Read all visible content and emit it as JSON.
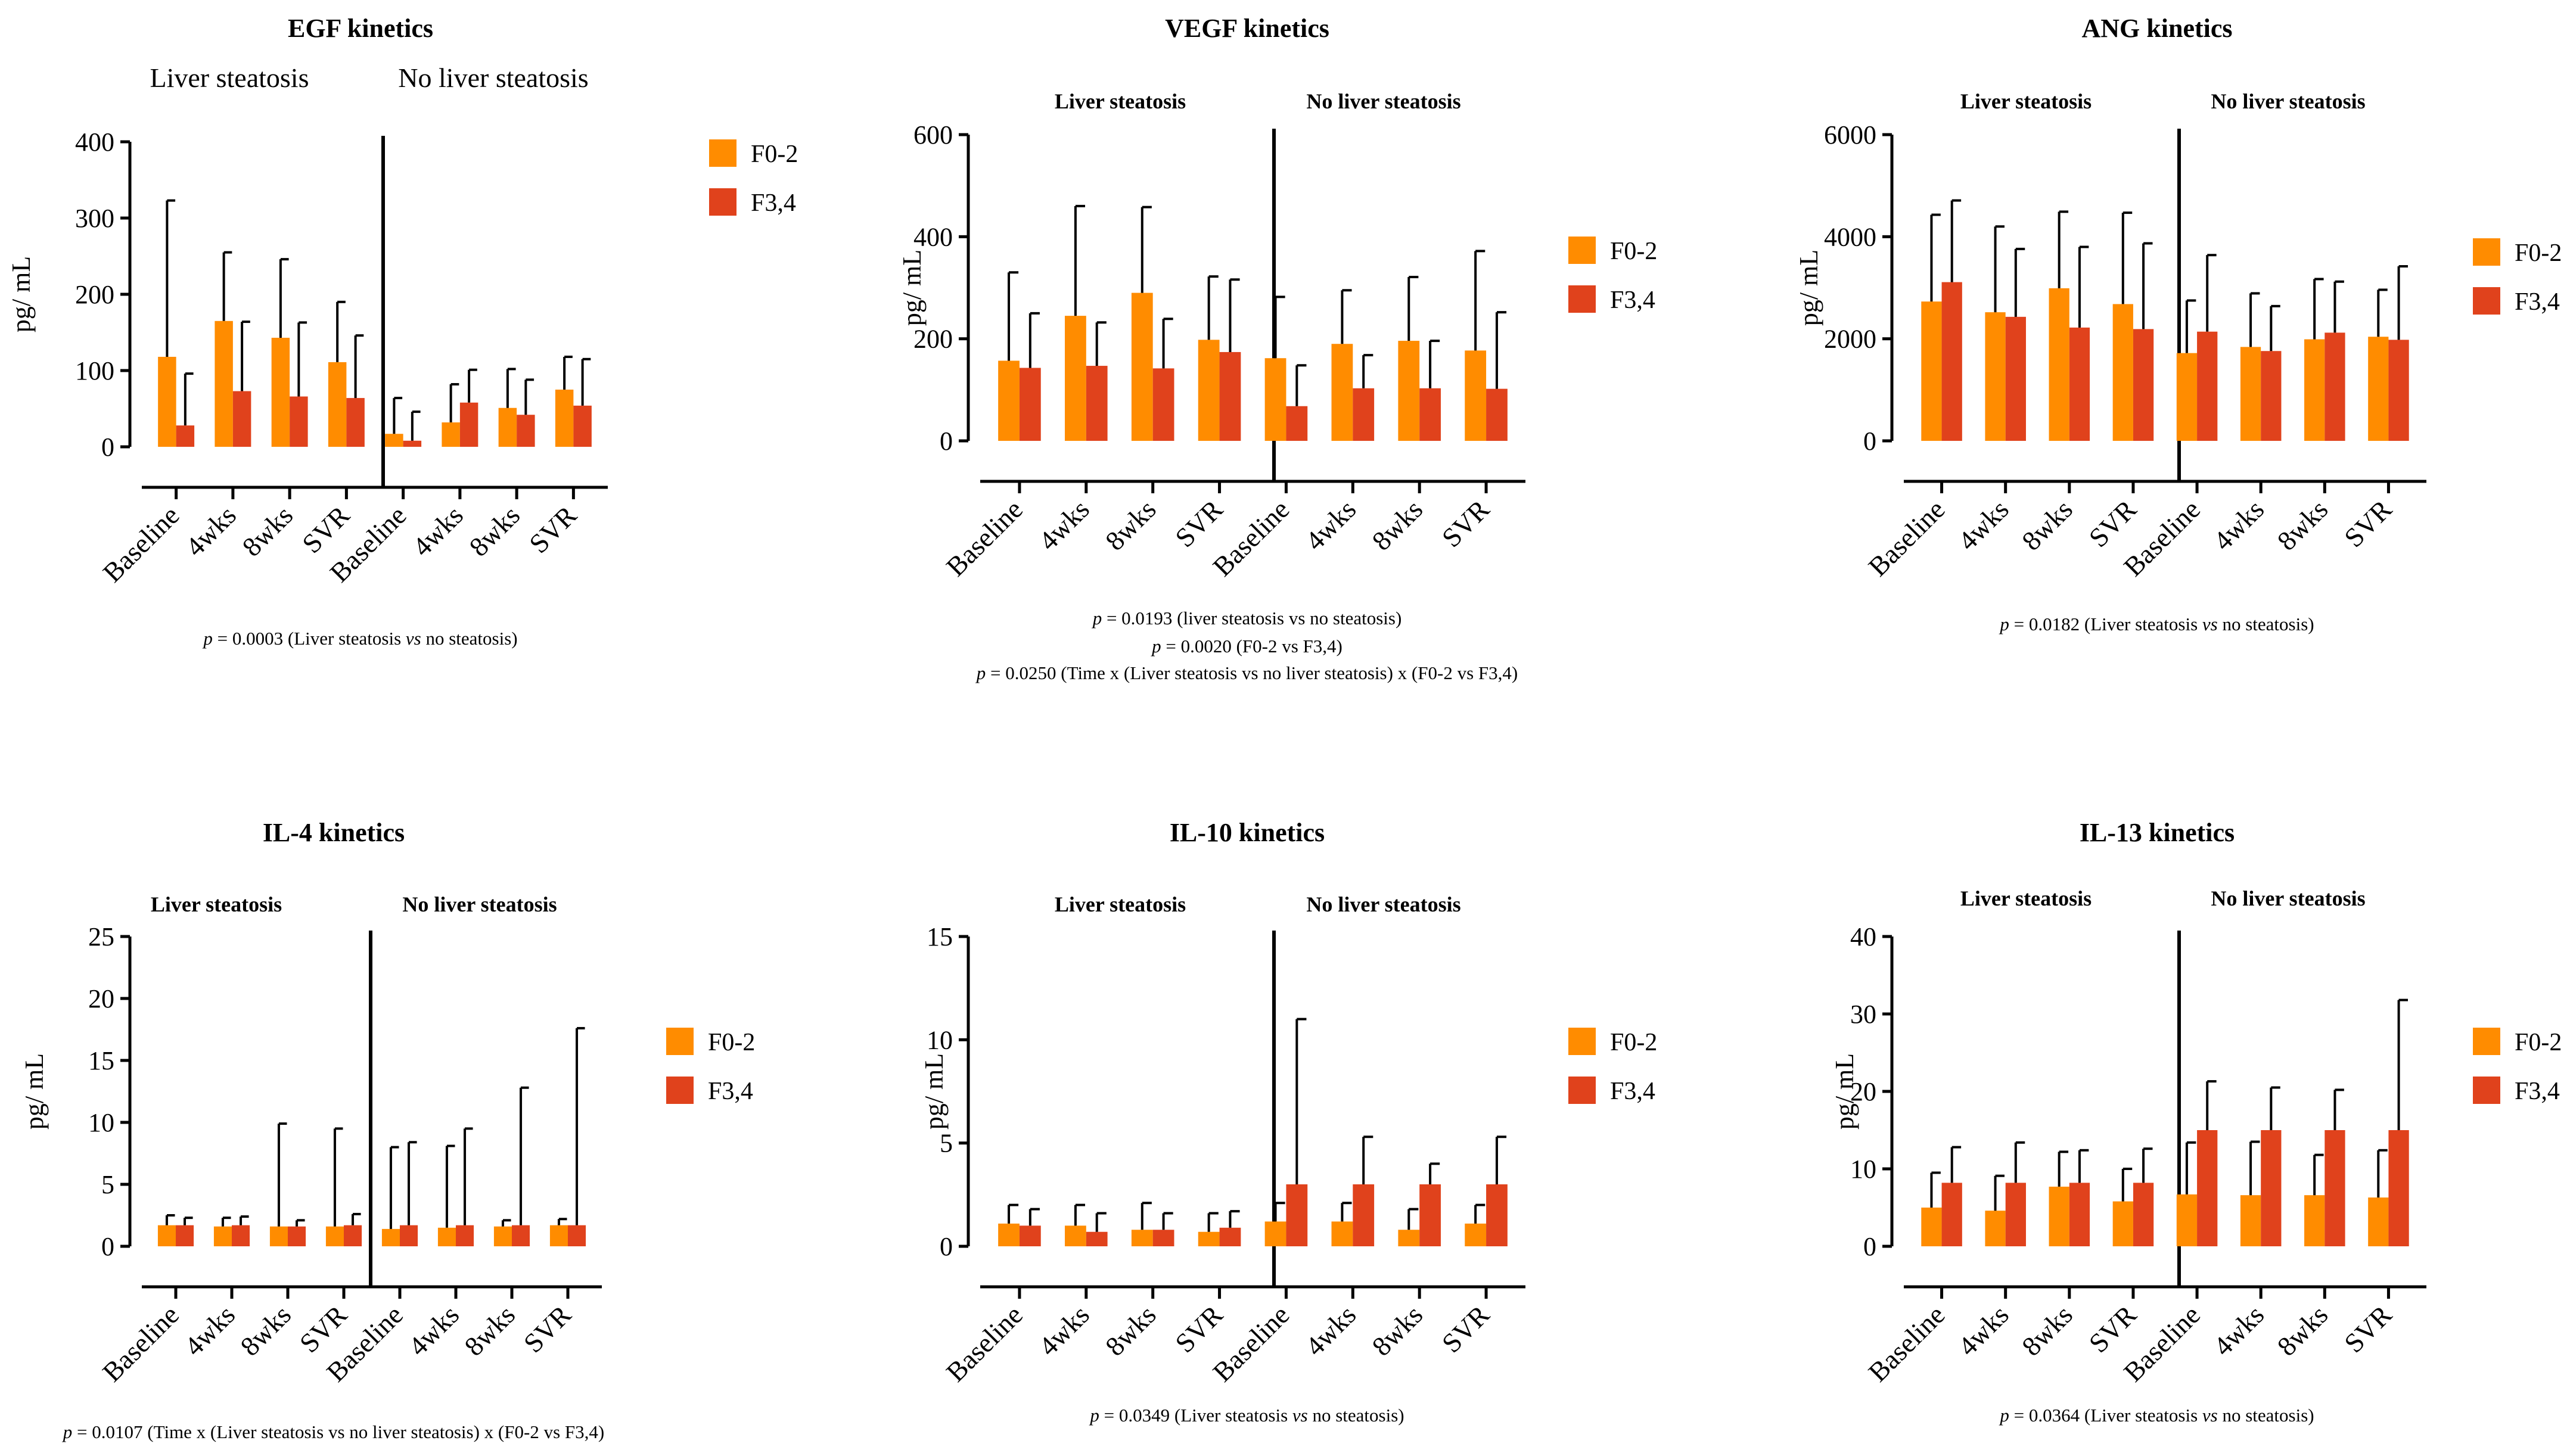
{
  "legend": [
    "F0-2",
    "F3,4"
  ],
  "colors": {
    "f02": "#ff8c00",
    "f34": "#e0421c",
    "axis": "#000000"
  },
  "chart_data": [
    {
      "type": "bar",
      "title": "EGF kinetics",
      "ylabel": "pg/ mL",
      "ylim": [
        0,
        400
      ],
      "yticks": [
        "0",
        "100",
        "200",
        "300",
        "400"
      ],
      "groups": [
        "Liver steatosis",
        "No liver steatosis"
      ],
      "categories": [
        "Baseline",
        "4wks",
        "8wks",
        "SVR",
        "Baseline",
        "4wks",
        "8wks",
        "SVR"
      ],
      "series": [
        {
          "name": "F0-2",
          "values": [
            118,
            165,
            143,
            111,
            17,
            32,
            51,
            75
          ],
          "errors": [
            205,
            90,
            103,
            79,
            47,
            50,
            51,
            43
          ]
        },
        {
          "name": "F3,4",
          "values": [
            28,
            73,
            66,
            64,
            8,
            58,
            42,
            54
          ],
          "errors": [
            68,
            91,
            97,
            82,
            38,
            43,
            46,
            61
          ]
        }
      ],
      "notes": [
        [
          "p",
          " = 0.0003 (Liver steatosis ",
          "vs",
          " no steatosis)"
        ]
      ]
    },
    {
      "type": "bar",
      "title": "VEGF kinetics",
      "ylabel": "pg/ mL",
      "ylim": [
        0,
        600
      ],
      "yticks": [
        "0",
        "200",
        "400",
        "600"
      ],
      "groups": [
        "Liver steatosis",
        "No liver steatosis"
      ],
      "categories": [
        "Baseline",
        "4wks",
        "8wks",
        "SVR",
        "Baseline",
        "4wks",
        "8wks",
        "SVR"
      ],
      "series": [
        {
          "name": "F0-2",
          "values": [
            157,
            245,
            290,
            198,
            162,
            190,
            196,
            177
          ],
          "errors": [
            173,
            215,
            168,
            124,
            120,
            105,
            125,
            195
          ]
        },
        {
          "name": "F3,4",
          "values": [
            143,
            147,
            142,
            174,
            68,
            103,
            103,
            102
          ],
          "errors": [
            107,
            85,
            97,
            142,
            80,
            65,
            93,
            150
          ]
        }
      ],
      "notes": [
        [
          "p",
          " = 0.0193 (liver steatosis vs no steatosis)"
        ],
        [
          "p",
          " = 0.0020 (F0-2 vs F3,4)"
        ],
        [
          "p",
          " = 0.0250 (Time x (Liver steatosis vs no liver steatosis) x (F0-2 vs F3,4)"
        ]
      ]
    },
    {
      "type": "bar",
      "title": "ANG kinetics",
      "ylabel": "pg/ mL",
      "ylim": [
        0,
        6000
      ],
      "yticks": [
        "0",
        "2000",
        "4000",
        "6000"
      ],
      "groups": [
        "Liver steatosis",
        "No liver steatosis"
      ],
      "categories": [
        "Baseline",
        "4wks",
        "8wks",
        "SVR",
        "Baseline",
        "4wks",
        "8wks",
        "SVR"
      ],
      "series": [
        {
          "name": "F0-2",
          "values": [
            2730,
            2520,
            2990,
            2680,
            1720,
            1840,
            1990,
            2040
          ],
          "errors": [
            1700,
            1680,
            1500,
            1790,
            1030,
            1050,
            1180,
            920
          ]
        },
        {
          "name": "F3,4",
          "values": [
            3110,
            2430,
            2220,
            2190,
            2140,
            1760,
            2120,
            1980
          ],
          "errors": [
            1600,
            1330,
            1580,
            1680,
            1500,
            880,
            1000,
            1440
          ]
        }
      ],
      "notes": [
        [
          "p",
          " = 0.0182 (Liver steatosis ",
          "vs",
          " no steatosis)"
        ]
      ]
    },
    {
      "type": "bar",
      "title": "IL-4 kinetics",
      "ylabel": "pg/ mL",
      "ylim": [
        0,
        25
      ],
      "yticks": [
        "0",
        "5",
        "10",
        "15",
        "20",
        "25"
      ],
      "groups": [
        "Liver steatosis",
        "No liver steatosis"
      ],
      "categories": [
        "Baseline",
        "4wks",
        "8wks",
        "SVR",
        "Baseline",
        "4wks",
        "8wks",
        "SVR"
      ],
      "series": [
        {
          "name": "F0-2",
          "values": [
            1.7,
            1.6,
            1.6,
            1.6,
            1.4,
            1.5,
            1.6,
            1.7
          ],
          "errors": [
            0.8,
            0.7,
            8.3,
            7.9,
            6.6,
            6.6,
            0.5,
            0.5
          ]
        },
        {
          "name": "F3,4",
          "values": [
            1.7,
            1.7,
            1.6,
            1.7,
            1.7,
            1.7,
            1.7,
            1.7
          ],
          "errors": [
            0.6,
            0.7,
            0.5,
            0.9,
            6.7,
            7.8,
            11.1,
            15.9
          ]
        }
      ],
      "notes": [
        [
          "p",
          " = 0.0107 (Time x (Liver steatosis vs no liver steatosis) x (F0-2 vs F3,4)"
        ]
      ]
    },
    {
      "type": "bar",
      "title": "IL-10 kinetics",
      "ylabel": "pg/ mL",
      "ylim": [
        0,
        15
      ],
      "yticks": [
        "0",
        "5",
        "10",
        "15"
      ],
      "groups": [
        "Liver steatosis",
        "No liver steatosis"
      ],
      "categories": [
        "Baseline",
        "4wks",
        "8wks",
        "SVR",
        "Baseline",
        "4wks",
        "8wks",
        "SVR"
      ],
      "series": [
        {
          "name": "F0-2",
          "values": [
            1.1,
            1.0,
            0.8,
            0.7,
            1.2,
            1.2,
            0.8,
            1.1
          ],
          "errors": [
            0.9,
            1.0,
            1.3,
            0.9,
            0.9,
            0.9,
            1.0,
            0.9
          ]
        },
        {
          "name": "F3,4",
          "values": [
            1.0,
            0.7,
            0.8,
            0.9,
            3.0,
            3.0,
            3.0,
            3.0
          ],
          "errors": [
            0.8,
            0.9,
            0.8,
            0.8,
            8.0,
            2.3,
            1.0,
            2.3
          ]
        }
      ],
      "notes": [
        [
          "p",
          " = 0.0349 (Liver steatosis ",
          "vs",
          " no steatosis)"
        ]
      ]
    },
    {
      "type": "bar",
      "title": "IL-13 kinetics",
      "ylabel": "pg/ mL",
      "ylim": [
        0,
        40
      ],
      "yticks": [
        "0",
        "10",
        "20",
        "30",
        "40"
      ],
      "groups": [
        "Liver steatosis",
        "No liver steatosis"
      ],
      "categories": [
        "Baseline",
        "4wks",
        "8wks",
        "SVR",
        "Baseline",
        "4wks",
        "8wks",
        "SVR"
      ],
      "series": [
        {
          "name": "F0-2",
          "values": [
            5.0,
            4.6,
            7.7,
            5.8,
            6.7,
            6.6,
            6.6,
            6.3
          ],
          "errors": [
            4.5,
            4.5,
            4.5,
            4.2,
            6.7,
            6.9,
            5.2,
            6.1
          ]
        },
        {
          "name": "F3,4",
          "values": [
            8.2,
            8.2,
            8.2,
            8.2,
            15.0,
            15.0,
            15.0,
            15.0
          ],
          "errors": [
            4.6,
            5.2,
            4.2,
            4.4,
            6.3,
            5.5,
            5.2,
            16.8
          ]
        }
      ],
      "notes": [
        [
          "p",
          " = 0.0364 (Liver steatosis ",
          "vs",
          " no steatosis)"
        ]
      ]
    }
  ]
}
